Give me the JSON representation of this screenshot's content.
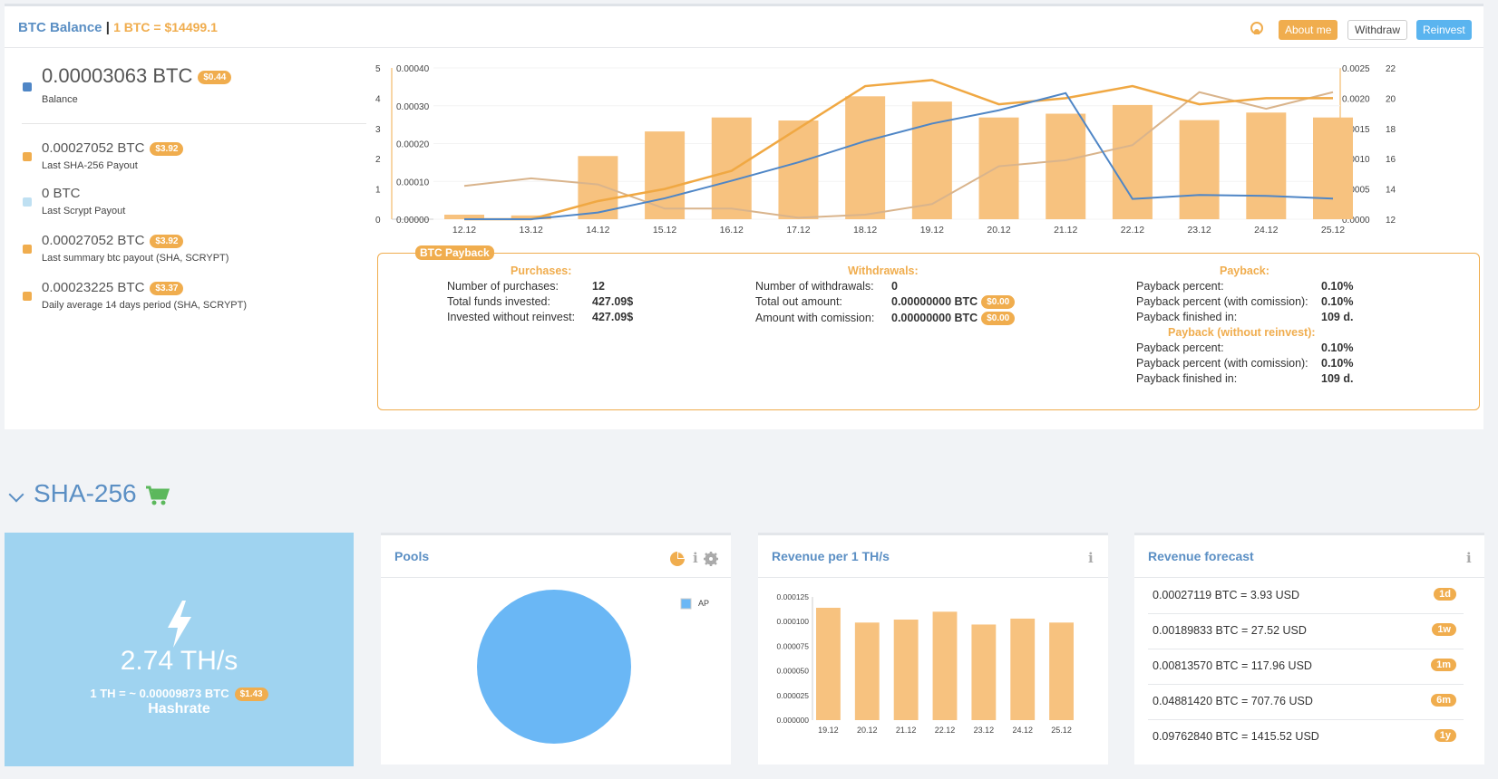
{
  "header": {
    "title": "BTC Balance",
    "separator": "|",
    "rate": "1 BTC = $14499.1",
    "about_label": "About me",
    "withdraw_label": "Withdraw",
    "reinvest_label": "Reinvest"
  },
  "stats": [
    {
      "value": "0.00003063 BTC",
      "usd": "$0.44",
      "label": "Balance",
      "color": "#4f86c6"
    },
    {
      "value": "0.00027052 BTC",
      "usd": "$3.92",
      "label": "Last SHA-256 Payout",
      "color": "#f0ad4e"
    },
    {
      "value": "0 BTC",
      "usd": "",
      "label": "Last Scrypt Payout",
      "color": "#bfe0f2"
    },
    {
      "value": "0.00027052 BTC",
      "usd": "$3.92",
      "label": "Last summary btc payout (SHA, SCRYPT)",
      "color": "#f0ad4e"
    },
    {
      "value": "0.00023225 BTC",
      "usd": "$3.37",
      "label": "Daily average 14 days period (SHA, SCRYPT)",
      "color": "#f0ad4e"
    }
  ],
  "chart_data": [
    {
      "type": "bar",
      "categories": [
        "12.12",
        "13.12",
        "14.12",
        "15.12",
        "16.12",
        "17.12",
        "18.12",
        "19.12",
        "20.12",
        "21.12",
        "22.12",
        "23.12",
        "24.12",
        "25.12"
      ],
      "left_axis_a": {
        "ticks": [
          "0",
          "1",
          "2",
          "3",
          "4",
          "5"
        ]
      },
      "left_axis_b": {
        "ticks": [
          "0.00000",
          "0.00010",
          "0.00020",
          "0.00030",
          "0.00040"
        ]
      },
      "right_axis_a": {
        "ticks": [
          "0.0000",
          "0.0005",
          "0.0010",
          "0.0015",
          "0.0020",
          "0.0025"
        ]
      },
      "right_axis_b": {
        "ticks": [
          "12",
          "14",
          "16",
          "18",
          "20",
          "22"
        ]
      },
      "colors": {
        "bars": "#f7c27f",
        "orange": "#f0a843",
        "blue": "#4f86c6",
        "brown": "#d9b48c"
      },
      "series": [
        {
          "values": [
            1.2e-05,
            1e-05,
            0.000167,
            0.000232,
            0.000269,
            0.000261,
            0.000325,
            0.000311,
            0.000269,
            0.000279,
            0.000302,
            0.000262,
            0.000282,
            0.000269
          ]
        },
        {
          "values": [
            0.0,
            0.0,
            0.22,
            0.69,
            1.27,
            1.88,
            2.58,
            3.16,
            3.6,
            4.17,
            0.67,
            0.8,
            0.77,
            0.68
          ]
        },
        {
          "values": [
            0.0,
            0.0,
            0.0003,
            0.0005,
            0.0008,
            0.0015,
            0.0022,
            0.0023,
            0.0019,
            0.002,
            0.0022,
            0.0019,
            0.002,
            0.002
          ]
        },
        {
          "values": [
            14.2,
            14.7,
            14.3,
            12.7,
            12.7,
            12.1,
            12.3,
            13.0,
            15.5,
            15.9,
            16.9,
            20.4,
            19.3,
            20.4
          ]
        }
      ]
    },
    {
      "type": "bar",
      "categories": [
        "19.12",
        "20.12",
        "21.12",
        "22.12",
        "23.12",
        "24.12",
        "25.12"
      ],
      "values": [
        0.000114,
        9.9e-05,
        0.000102,
        0.00011,
        9.7e-05,
        0.000103,
        9.9e-05
      ],
      "y_ticks": [
        "0.000000",
        "0.000025",
        "0.000050",
        "0.000075",
        "0.000100",
        "0.000125"
      ],
      "ylim": [
        0,
        0.000125
      ],
      "color": "#f7c27f"
    },
    {
      "type": "pie",
      "slices": [
        {
          "name": "AP",
          "value": 100
        }
      ],
      "color": "#6ab7f5",
      "legend": "top-right"
    }
  ],
  "payback": {
    "tag": "BTC Payback",
    "purchases": {
      "heading": "Purchases:",
      "rows": [
        {
          "label": "Number of purchases:",
          "value": "12"
        },
        {
          "label": "Total funds invested:",
          "value": "427.09$"
        },
        {
          "label": "Invested without reinvest:",
          "value": "427.09$"
        }
      ]
    },
    "withdrawals": {
      "heading": "Withdrawals:",
      "rows": [
        {
          "label": "Number of withdrawals:",
          "value": "0",
          "usd": ""
        },
        {
          "label": "Total out amount:",
          "value": "0.00000000 BTC",
          "usd": "$0.00"
        },
        {
          "label": "Amount with comission:",
          "value": "0.00000000 BTC",
          "usd": "$0.00"
        }
      ]
    },
    "payback": {
      "heading": "Payback:",
      "rows": [
        {
          "label": "Payback percent:",
          "value": "0.10%"
        },
        {
          "label": "Payback percent (with comission):",
          "value": "0.10%"
        },
        {
          "label": "Payback finished in:",
          "value": "109 d."
        }
      ],
      "heading2": "Payback (without reinvest):",
      "rows2": [
        {
          "label": "Payback percent:",
          "value": "0.10%"
        },
        {
          "label": "Payback percent (with comission):",
          "value": "0.10%"
        },
        {
          "label": "Payback finished in:",
          "value": "109 d."
        }
      ]
    }
  },
  "section": {
    "title": "SHA-256"
  },
  "hashrate": {
    "value": "2.74 TH/s",
    "sub": "1 TH = ~ 0.00009873 BTC",
    "usd": "$1.43",
    "label": "Hashrate"
  },
  "pools": {
    "title": "Pools",
    "legend": "AP"
  },
  "revenue": {
    "title": "Revenue per 1 TH/s"
  },
  "forecast": {
    "title": "Revenue forecast",
    "rows": [
      {
        "text": "0.00027119 BTC = 3.93 USD",
        "tag": "1d"
      },
      {
        "text": "0.00189833 BTC = 27.52 USD",
        "tag": "1w"
      },
      {
        "text": "0.00813570 BTC = 117.96 USD",
        "tag": "1m"
      },
      {
        "text": "0.04881420 BTC = 707.76 USD",
        "tag": "6m"
      },
      {
        "text": "0.09762840 BTC = 1415.52 USD",
        "tag": "1y"
      }
    ]
  }
}
